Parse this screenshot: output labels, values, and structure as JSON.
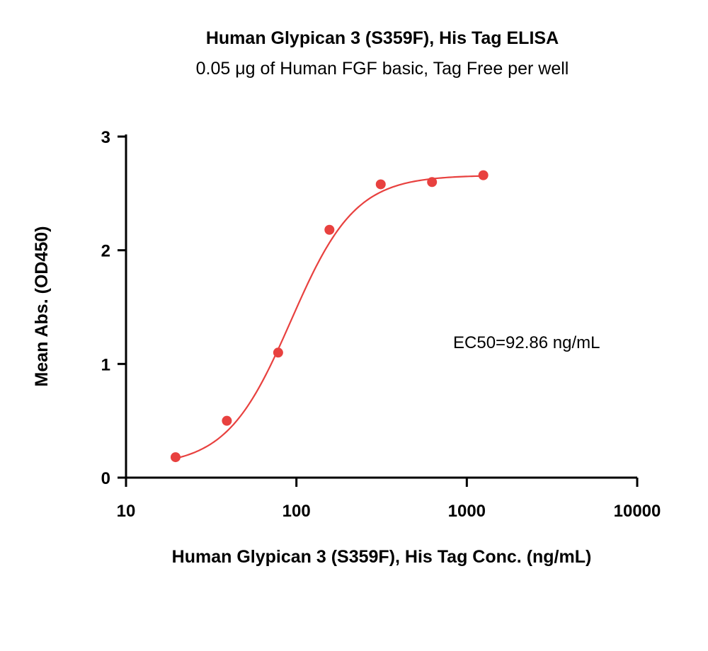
{
  "chart_data": {
    "type": "scatter",
    "title": "Human Glypican 3 (S359F), His Tag ELISA",
    "subtitle": "0.05 μg of Human FGF basic, Tag Free per well",
    "xlabel": "Human Glypican 3 (S359F), His Tag Conc. (ng/mL)",
    "ylabel": "Mean Abs. (OD450)",
    "x_scale": "log",
    "xlim": [
      10,
      10000
    ],
    "ylim": [
      0,
      3
    ],
    "x_ticks": [
      10,
      100,
      1000,
      10000
    ],
    "x_tick_labels": [
      "10",
      "100",
      "1000",
      "10000"
    ],
    "y_ticks": [
      0,
      1,
      2,
      3
    ],
    "y_tick_labels": [
      "0",
      "1",
      "2",
      "3"
    ],
    "grid": false,
    "series": [
      {
        "color": "#e8413f",
        "points": [
          {
            "x": 19.53,
            "y": 0.18
          },
          {
            "x": 39.06,
            "y": 0.5
          },
          {
            "x": 78.13,
            "y": 1.1
          },
          {
            "x": 156.25,
            "y": 2.18
          },
          {
            "x": 312.5,
            "y": 2.58
          },
          {
            "x": 625,
            "y": 2.6
          },
          {
            "x": 1250,
            "y": 2.66
          }
        ],
        "fit": {
          "model": "4PL",
          "bottom": 0.1,
          "top": 2.66,
          "ec50": 92.86,
          "hill": 2.3,
          "x_range": [
            19.53,
            1250
          ]
        }
      }
    ],
    "annotations": [
      {
        "text": "EC50=92.86 ng/mL"
      }
    ]
  }
}
